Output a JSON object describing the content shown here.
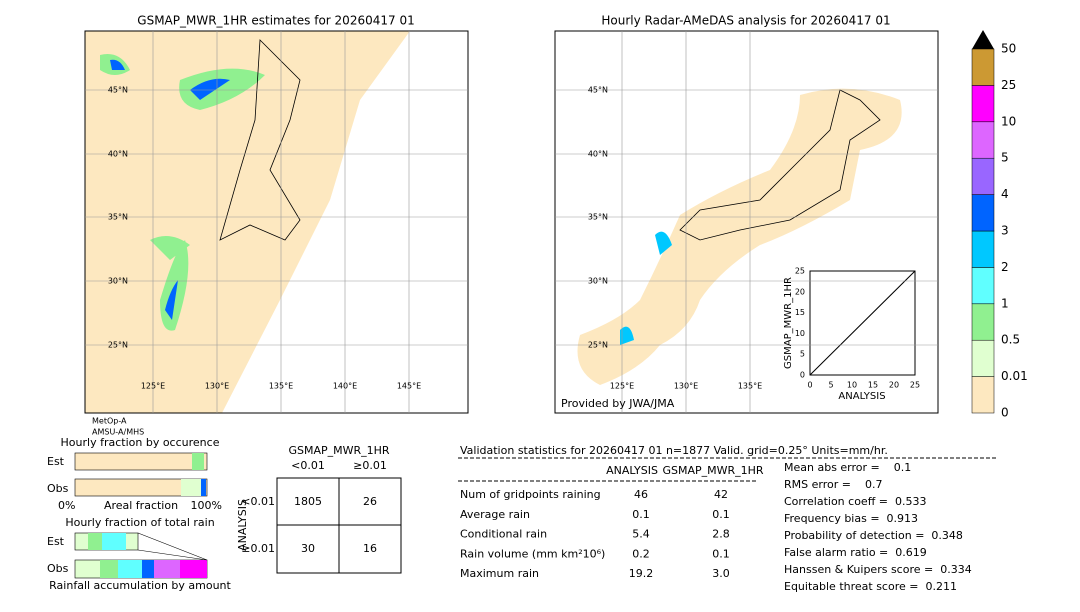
{
  "left_map": {
    "title": "GSMAP_MWR_1HR estimates for 20260417 01",
    "lat_labels": [
      "45°N",
      "40°N",
      "35°N",
      "30°N",
      "25°N"
    ],
    "lon_labels": [
      "125°E",
      "130°E",
      "135°E",
      "140°E",
      "145°E"
    ],
    "satellites": [
      "MetOp-A",
      "AMSU-A/MHS"
    ]
  },
  "right_map": {
    "title": "Hourly Radar-AMeDAS analysis for 20260417 01",
    "lat_labels": [
      "45°N",
      "40°N",
      "35°N",
      "30°N",
      "25°N"
    ],
    "lon_labels": [
      "125°E",
      "130°E",
      "135°E"
    ],
    "credit": "Provided by JWA/JMA"
  },
  "scatter": {
    "xlabel": "ANALYSIS",
    "ylabel": "GSMAP_MWR_1HR",
    "ticks": [
      "0",
      "5",
      "10",
      "15",
      "20",
      "25"
    ]
  },
  "colorbar": {
    "labels": [
      "0",
      "0.01",
      "0.5",
      "1",
      "2",
      "3",
      "4",
      "5",
      "10",
      "25",
      "50"
    ],
    "colors": [
      "#fde8c0",
      "#e0ffd0",
      "#90f090",
      "#60ffff",
      "#00c8ff",
      "#0064ff",
      "#9966ff",
      "#dd66ff",
      "#ff00ff",
      "#cc9933"
    ]
  },
  "occurrence": {
    "title": "Hourly fraction by occurence",
    "rows": [
      "Est",
      "Obs"
    ],
    "axis": [
      "0%",
      "Areal fraction",
      "100%"
    ]
  },
  "total_rain": {
    "title": "Hourly fraction of total rain",
    "rows": [
      "Est",
      "Obs"
    ],
    "caption": "Rainfall accumulation by amount"
  },
  "contingency": {
    "title": "GSMAP_MWR_1HR",
    "cols": [
      "<0.01",
      "≥0.01"
    ],
    "row_title": "ANALYSIS",
    "rows": [
      "<0.01",
      "≥0.01"
    ],
    "cells": [
      [
        "1805",
        "26"
      ],
      [
        "30",
        "16"
      ]
    ]
  },
  "validation": {
    "heading": "Validation statistics for 20260417 01  n=1877 Valid. grid=0.25° Units=mm/hr.",
    "columns": [
      "ANALYSIS",
      "GSMAP_MWR_1HR"
    ],
    "rows": [
      [
        "Num of gridpoints raining",
        "46",
        "42"
      ],
      [
        "Average rain",
        "0.1",
        "0.1"
      ],
      [
        "Conditional rain",
        "5.4",
        "2.8"
      ],
      [
        "Rain volume (mm km²10⁶)",
        "0.2",
        "0.1"
      ],
      [
        "Maximum rain",
        "19.2",
        "3.0"
      ]
    ]
  },
  "scores": [
    "Mean abs error =    0.1",
    "RMS error =    0.7",
    "Correlation coeff =  0.533",
    "Frequency bias =  0.913",
    "Probability of detection =  0.348",
    "False alarm ratio =  0.619",
    "Hanssen & Kuipers score =  0.334",
    "Equitable threat score =  0.211"
  ]
}
